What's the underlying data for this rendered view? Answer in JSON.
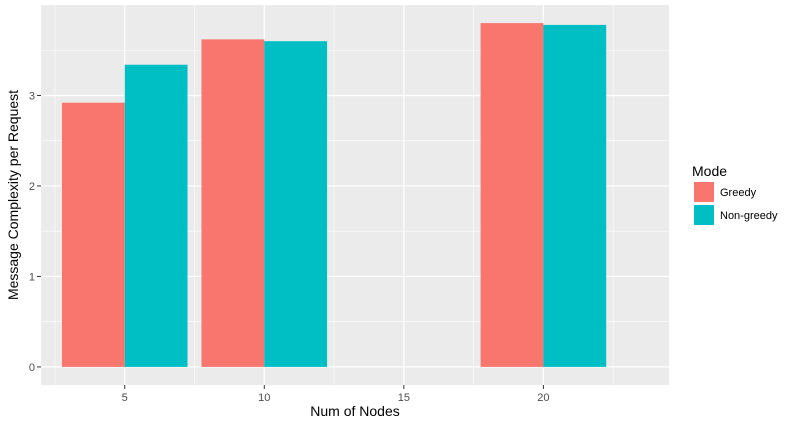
{
  "chart_data": {
    "type": "bar",
    "title": "",
    "xlabel": "Num of Nodes",
    "ylabel": "Message Complexity per Request",
    "x": [
      5,
      10,
      20
    ],
    "xticks": [
      "5",
      "10",
      "15",
      "20"
    ],
    "xtick_values": [
      5,
      10,
      15,
      20
    ],
    "xlim": [
      2,
      24.5
    ],
    "yticks": [
      "0",
      "1",
      "2",
      "3"
    ],
    "ytick_values": [
      0,
      1,
      2,
      3
    ],
    "ylim": [
      -0.2,
      4.0
    ],
    "bar_width": 4.5,
    "grid": true,
    "legend": {
      "title": "Mode",
      "placement": "right"
    },
    "series": [
      {
        "name": "Greedy",
        "color": "#F8766D",
        "values": [
          2.92,
          3.62,
          3.8
        ]
      },
      {
        "name": "Non-greedy",
        "color": "#00BFC4",
        "values": [
          3.34,
          3.6,
          3.78
        ]
      }
    ],
    "panel_background": "#EBEBEB",
    "grid_color": "#FFFFFF"
  }
}
